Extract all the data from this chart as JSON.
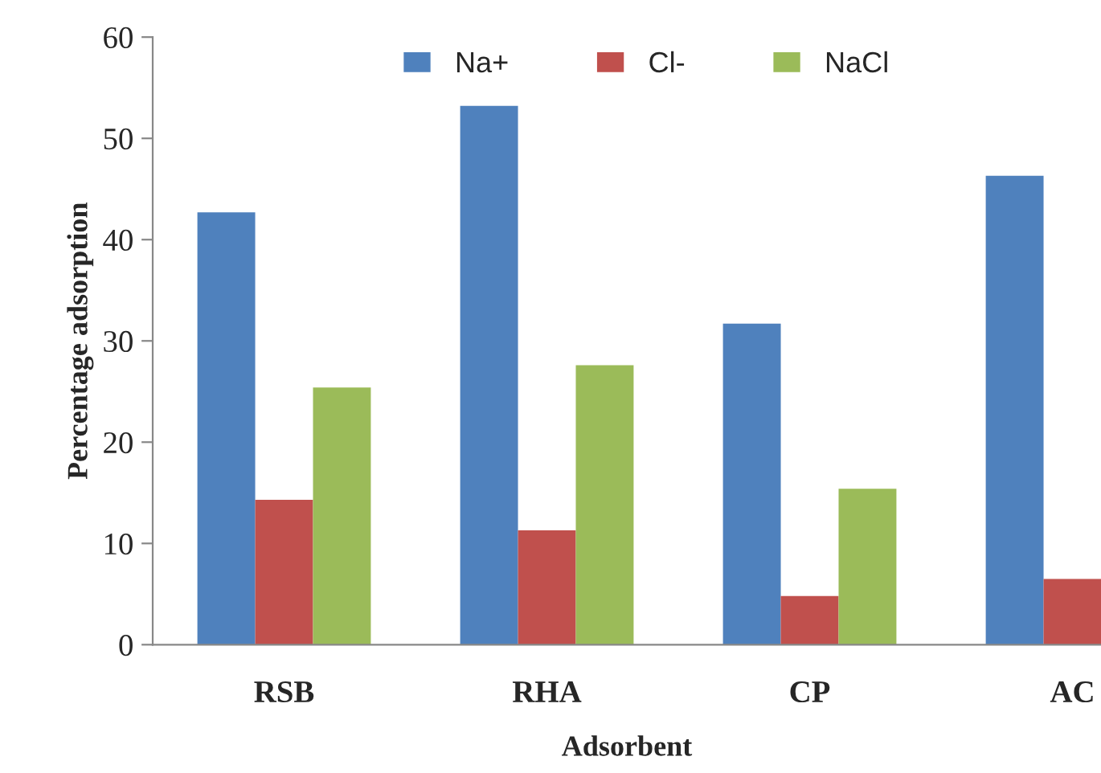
{
  "chart_data": {
    "type": "bar",
    "xlabel": "Adsorbent",
    "ylabel": "Percentage adsorption",
    "categories": [
      "RSB",
      "RHA",
      "CP",
      "AC"
    ],
    "series": [
      {
        "name": "Na+",
        "color": "#4f81bd",
        "values": [
          42.7,
          53.2,
          31.7,
          46.3
        ]
      },
      {
        "name": "Cl-",
        "color": "#c0504d",
        "values": [
          14.3,
          11.3,
          4.8,
          6.5
        ]
      },
      {
        "name": "NaCl",
        "color": "#9bbb59",
        "values": [
          25.4,
          27.6,
          15.4,
          null
        ]
      }
    ],
    "ylim": [
      0,
      60
    ],
    "yticks": [
      0,
      10,
      20,
      30,
      40,
      50,
      60
    ],
    "grid": false,
    "legend": "top"
  }
}
